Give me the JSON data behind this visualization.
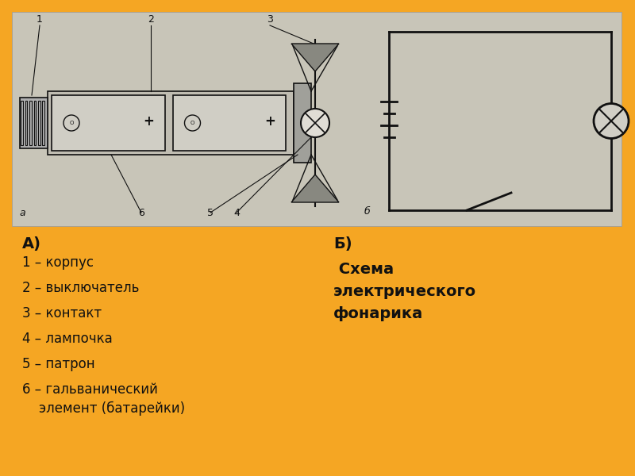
{
  "bg_color": "#F5A623",
  "img_bg": "#C8C5B8",
  "text_color": "#111111",
  "label_A": "А)",
  "label_B": "Б)",
  "items_left": [
    "1 – корпус",
    "2 – выключатель",
    "3 – контакт",
    "4 – лампочка",
    "5 – патрон",
    "6 – гальванический\n    элемент (батарейки)"
  ],
  "right_title_b": "Б)",
  "right_title": " Схема\nэлектрического\nфонарика"
}
